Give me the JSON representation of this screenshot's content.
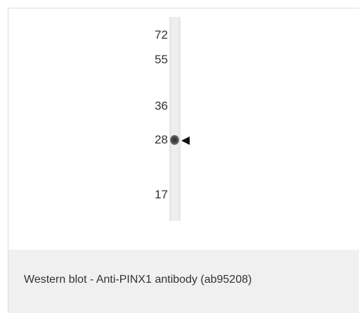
{
  "figure": {
    "markers": [
      "72",
      "55",
      "36",
      "28",
      "17"
    ],
    "band_marker": "28",
    "arrow_icon": "left-pointing-triangle",
    "caption": "Western blot - Anti-PINX1 antibody (ab95208)"
  },
  "colors": {
    "caption_background": "#f0f0f0",
    "text": "#333333",
    "border": "#dcdcdc"
  }
}
